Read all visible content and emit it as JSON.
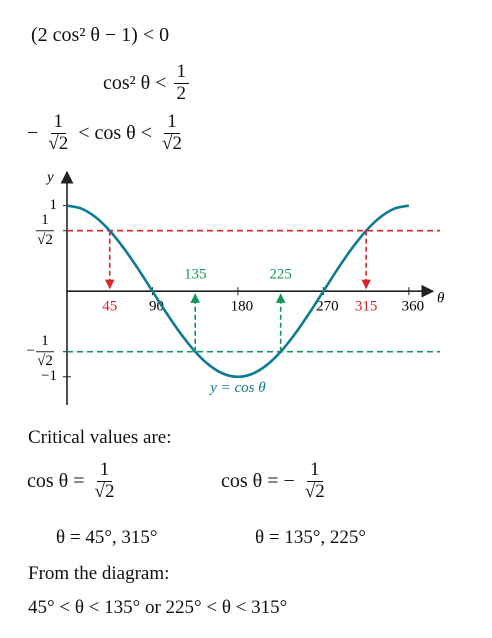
{
  "steps": [
    {
      "parts": [
        "(2 cos² θ − 1) < 0"
      ]
    },
    {
      "parts": [
        "cos² θ <",
        {
          "num": "1",
          "den": "2"
        }
      ]
    },
    {
      "parts": [
        "−",
        {
          "num": "1",
          "den": "√2"
        },
        "< cos θ <",
        {
          "num": "1",
          "den": "√2"
        }
      ]
    }
  ],
  "chart": {
    "type": "line",
    "x_label": "θ",
    "y_label": "y",
    "xlim": [
      0,
      377
    ],
    "ylim": [
      -1.33,
      1.3
    ],
    "xticks": [
      90,
      180,
      270,
      360
    ],
    "yticks": [
      1,
      {
        "value": 0.707,
        "label": {
          "num": "1",
          "den": "√2"
        }
      },
      {
        "value": -0.707,
        "label": {
          "sign": "−",
          "num": "1",
          "den": "√2"
        }
      },
      {
        "value": -1,
        "label": "−1"
      }
    ],
    "x": [
      0,
      15,
      30,
      45,
      60,
      75,
      90,
      105,
      120,
      135,
      150,
      165,
      180,
      195,
      210,
      225,
      240,
      255,
      270,
      285,
      300,
      315,
      330,
      345,
      360
    ],
    "values": [
      1,
      0.966,
      0.866,
      0.707,
      0.5,
      0.259,
      0,
      -0.259,
      -0.5,
      -0.707,
      -0.866,
      -0.966,
      -1,
      -0.966,
      -0.866,
      -0.707,
      -0.5,
      -0.259,
      0,
      0.259,
      0.5,
      0.707,
      0.866,
      0.966,
      1
    ],
    "color": "#0e7a94",
    "curve_label": "y = cos θ",
    "levels": [
      {
        "value": 0.707,
        "color": "#d9232d"
      },
      {
        "value": -0.707,
        "color": "#16955a"
      }
    ],
    "critical": [
      {
        "x": 45,
        "level": 0
      },
      {
        "x": 135,
        "level": 1
      },
      {
        "x": 225,
        "level": 1
      },
      {
        "x": 315,
        "level": 0
      }
    ]
  },
  "critical_heading": "Critical values are:",
  "cases": [
    {
      "equation": [
        "cos θ =",
        {
          "num": "1",
          "den": "√2"
        }
      ],
      "solution": "θ = 45°, 315°"
    },
    {
      "equation": [
        "cos θ = −",
        {
          "num": "1",
          "den": "√2"
        }
      ],
      "solution": "θ = 135°, 225°"
    }
  ],
  "from_heading": "From the diagram:",
  "conclusion": "45° < θ < 135° or 225° < θ < 315°"
}
